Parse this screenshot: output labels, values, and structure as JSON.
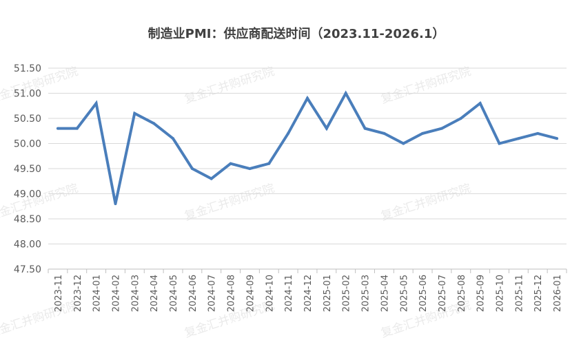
{
  "chart_data": {
    "type": "line",
    "title": "制造业PMI：供应商配送时间（2023.11-2026.1）",
    "xlabel": "",
    "ylabel": "",
    "ylim": [
      47.5,
      51.5
    ],
    "yticks": [
      "47.50",
      "48.00",
      "48.50",
      "49.00",
      "49.50",
      "50.00",
      "50.50",
      "51.00",
      "51.50"
    ],
    "grid": true,
    "legend": "none",
    "categories": [
      "2023-11",
      "2023-12",
      "2024-01",
      "2024-02",
      "2024-03",
      "2024-04",
      "2024-05",
      "2024-06",
      "2024-07",
      "2024-08",
      "2024-09",
      "2024-10",
      "2024-11",
      "2024-12",
      "2025-01",
      "2025-02",
      "2025-03",
      "2025-04",
      "2025-05",
      "2025-06",
      "2025-07",
      "2025-08",
      "2025-09",
      "2025-10",
      "2025-11",
      "2025-12",
      "2026-01"
    ],
    "series": [
      {
        "name": "",
        "color": "#4a7ebb",
        "values": [
          50.3,
          50.3,
          50.8,
          48.8,
          50.6,
          50.4,
          50.1,
          49.5,
          49.3,
          49.6,
          49.5,
          49.6,
          50.2,
          50.9,
          50.3,
          51.0,
          50.3,
          50.2,
          50.0,
          50.2,
          50.3,
          50.5,
          50.8,
          50.0,
          50.1,
          50.2,
          50.1
        ]
      }
    ],
    "watermark": "复金汇并购研究院"
  }
}
